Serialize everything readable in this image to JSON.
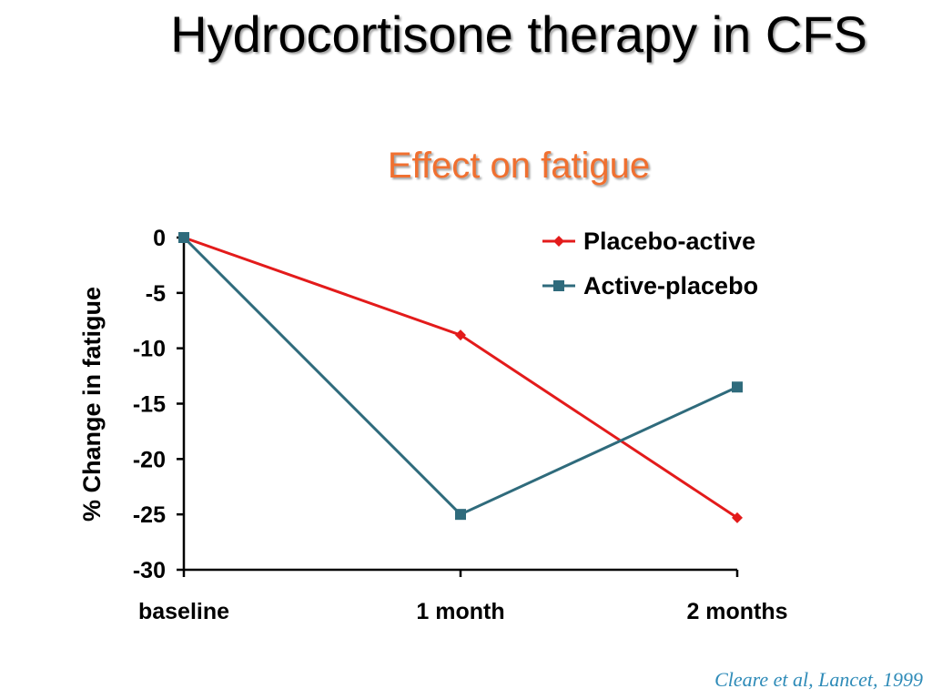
{
  "slide": {
    "title": "Hydrocortisone therapy in CFS",
    "subtitle": "Effect on fatigue",
    "citation": "Cleare et al, Lancet, 1999"
  },
  "chart_data": {
    "type": "line",
    "categories": [
      "baseline",
      "1 month",
      "2 months"
    ],
    "series": [
      {
        "name": "Placebo-active",
        "values": [
          0,
          -8.8,
          -25.3
        ],
        "color": "#e31b1b",
        "marker": "diamond"
      },
      {
        "name": "Active-placebo",
        "values": [
          0,
          -25,
          -13.5
        ],
        "color": "#2f6b7c",
        "marker": "square"
      }
    ],
    "yticks": [
      0,
      -5,
      -10,
      -15,
      -20,
      -25,
      -30
    ],
    "ylim": [
      -30,
      0
    ],
    "ylabel": "% Change in fatigue",
    "xlabel": "",
    "legend": "top-right",
    "grid": false
  }
}
